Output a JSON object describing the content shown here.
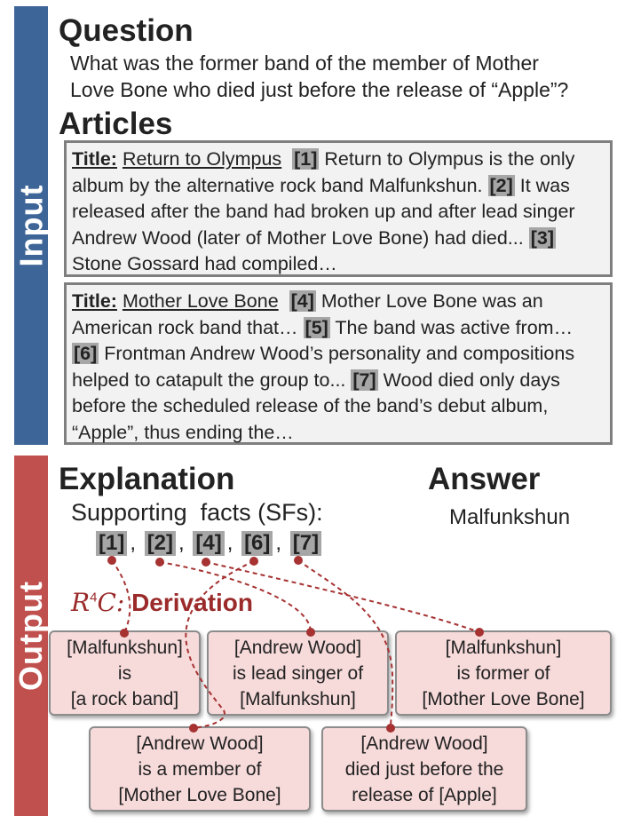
{
  "labels": {
    "input": "Input",
    "output": "Output"
  },
  "question": {
    "heading": "Question",
    "text_line1": "What was the former band of the member of Mother",
    "text_line2": "Love Bone who died just before the release of “Apple”?"
  },
  "articles": {
    "heading": "Articles",
    "items": [
      {
        "title_prefix": "Title:",
        "title": "Return to Olympus",
        "sentences": [
          {
            "ref": "[1]",
            "text": "Return to Olympus is the only album by the alternative rock band Malfunkshun."
          },
          {
            "ref": "[2]",
            "text": "It was released after the band had broken up and after lead singer Andrew Wood (later of Mother Love Bone) had died..."
          },
          {
            "ref": "[3]",
            "text": "Stone Gossard had compiled…"
          }
        ]
      },
      {
        "title_prefix": "Title:",
        "title": "Mother Love Bone",
        "sentences": [
          {
            "ref": "[4]",
            "text": "Mother Love Bone was an American rock band that…"
          },
          {
            "ref": "[5]",
            "text": "The band was active from…"
          },
          {
            "ref": "[6]",
            "text": "Frontman Andrew Wood’s personality and compositions helped to catapult the group to..."
          },
          {
            "ref": "[7]",
            "text": "Wood died only days before the scheduled release of the band’s debut album, “Apple”, thus ending the…"
          }
        ]
      }
    ]
  },
  "explanation": {
    "heading": "Explanation",
    "supporting_facts_label": "Supporting  facts (SFs):",
    "supporting_facts": [
      "[1]",
      "[2]",
      "[4]",
      "[6]",
      "[7]"
    ]
  },
  "answer": {
    "heading": "Answer",
    "value": "Malfunkshun"
  },
  "derivation": {
    "prefix": "R",
    "prefix_sup": "4",
    "prefix_suffix": "C:",
    "label": "Derivation",
    "nodes": [
      {
        "line1": "[Malfunkshun]",
        "line2": "is",
        "line3": "[a rock band]"
      },
      {
        "line1": "[Andrew Wood]",
        "line2": "is lead singer of",
        "line3": "[Malfunkshun]"
      },
      {
        "line1": "[Malfunkshun]",
        "line2": "is former of",
        "line3": "[Mother Love Bone]"
      },
      {
        "line1": "[Andrew Wood]",
        "line2": "is a member of",
        "line3": "[Mother Love Bone]"
      },
      {
        "line1": "[Andrew Wood]",
        "line2": "died just before the",
        "line3": "release of [Apple]"
      }
    ],
    "link_color": "#a63232"
  },
  "colors": {
    "input_bar": "#3e6597",
    "output_bar": "#c0504d",
    "node_fill": "#f7dada",
    "ref_tag": "#a6a6a6"
  }
}
